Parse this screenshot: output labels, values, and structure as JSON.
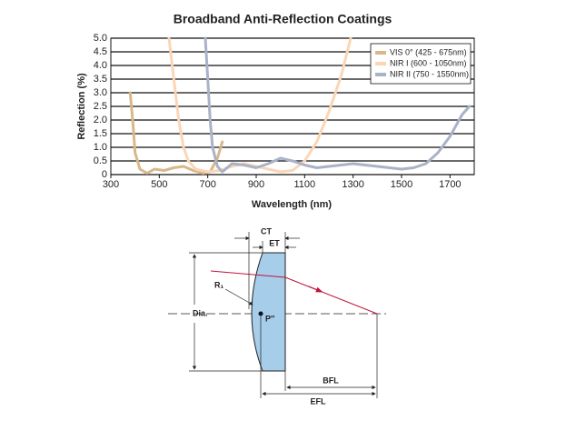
{
  "chart_data": {
    "type": "line",
    "title": "Broadband Anti-Reflection Coatings",
    "x_label": "Wavelength (nm)",
    "y_label": "Reflection (%)",
    "xlim": [
      300,
      1800
    ],
    "xticks": [
      300,
      500,
      700,
      900,
      1100,
      1300,
      1500,
      1700
    ],
    "ylim": [
      0,
      5
    ],
    "yticks": [
      0,
      0.5,
      {
        "value": 1,
        "label": "1.0"
      },
      1.5,
      {
        "value": 2,
        "label": "2.0"
      },
      2.5,
      {
        "value": 3,
        "label": "3.0"
      },
      3.5,
      {
        "value": 4,
        "label": "4.0"
      },
      4.5,
      {
        "value": 5,
        "label": "5.0"
      }
    ],
    "grid": true,
    "legend": "upper right",
    "series": [
      {
        "name": "VIS 0° (425 - 675nm)",
        "color": "#d8b88a",
        "x": [
          380,
          390,
          400,
          420,
          450,
          480,
          520,
          560,
          600,
          640,
          680,
          710,
          740,
          760
        ],
        "values": [
          3.0,
          2.0,
          0.8,
          0.2,
          0.05,
          0.2,
          0.15,
          0.25,
          0.3,
          0.15,
          0.05,
          0.1,
          0.6,
          1.2
        ]
      },
      {
        "name": "NIR I (600 - 1050nm)",
        "color": "#fbd6b6",
        "x": [
          540,
          560,
          580,
          600,
          620,
          650,
          700,
          750,
          800,
          850,
          900,
          950,
          1000,
          1050,
          1100,
          1150,
          1200,
          1250,
          1290
        ],
        "values": [
          5.0,
          3.5,
          2.0,
          1.0,
          0.5,
          0.2,
          0.1,
          0.15,
          0.3,
          0.4,
          0.3,
          0.2,
          0.1,
          0.15,
          0.5,
          1.2,
          2.3,
          3.6,
          5.0
        ]
      },
      {
        "name": "NIR II (750 - 1550nm)",
        "color": "#aab2c8",
        "x": [
          690,
          700,
          710,
          720,
          740,
          760,
          800,
          850,
          900,
          950,
          1000,
          1050,
          1100,
          1150,
          1200,
          1300,
          1400,
          1500,
          1550,
          1600,
          1650,
          1700,
          1750,
          1780
        ],
        "values": [
          5.0,
          3.5,
          2.0,
          1.0,
          0.3,
          0.1,
          0.4,
          0.35,
          0.25,
          0.4,
          0.6,
          0.5,
          0.35,
          0.25,
          0.3,
          0.4,
          0.3,
          0.2,
          0.25,
          0.4,
          0.8,
          1.4,
          2.2,
          2.5
        ]
      }
    ]
  },
  "diagram": {
    "labels": {
      "ct": "CT",
      "et": "ET",
      "r1": "R₁",
      "dia": "Dia.",
      "p": "P″",
      "bfl": "BFL",
      "efl": "EFL"
    }
  }
}
